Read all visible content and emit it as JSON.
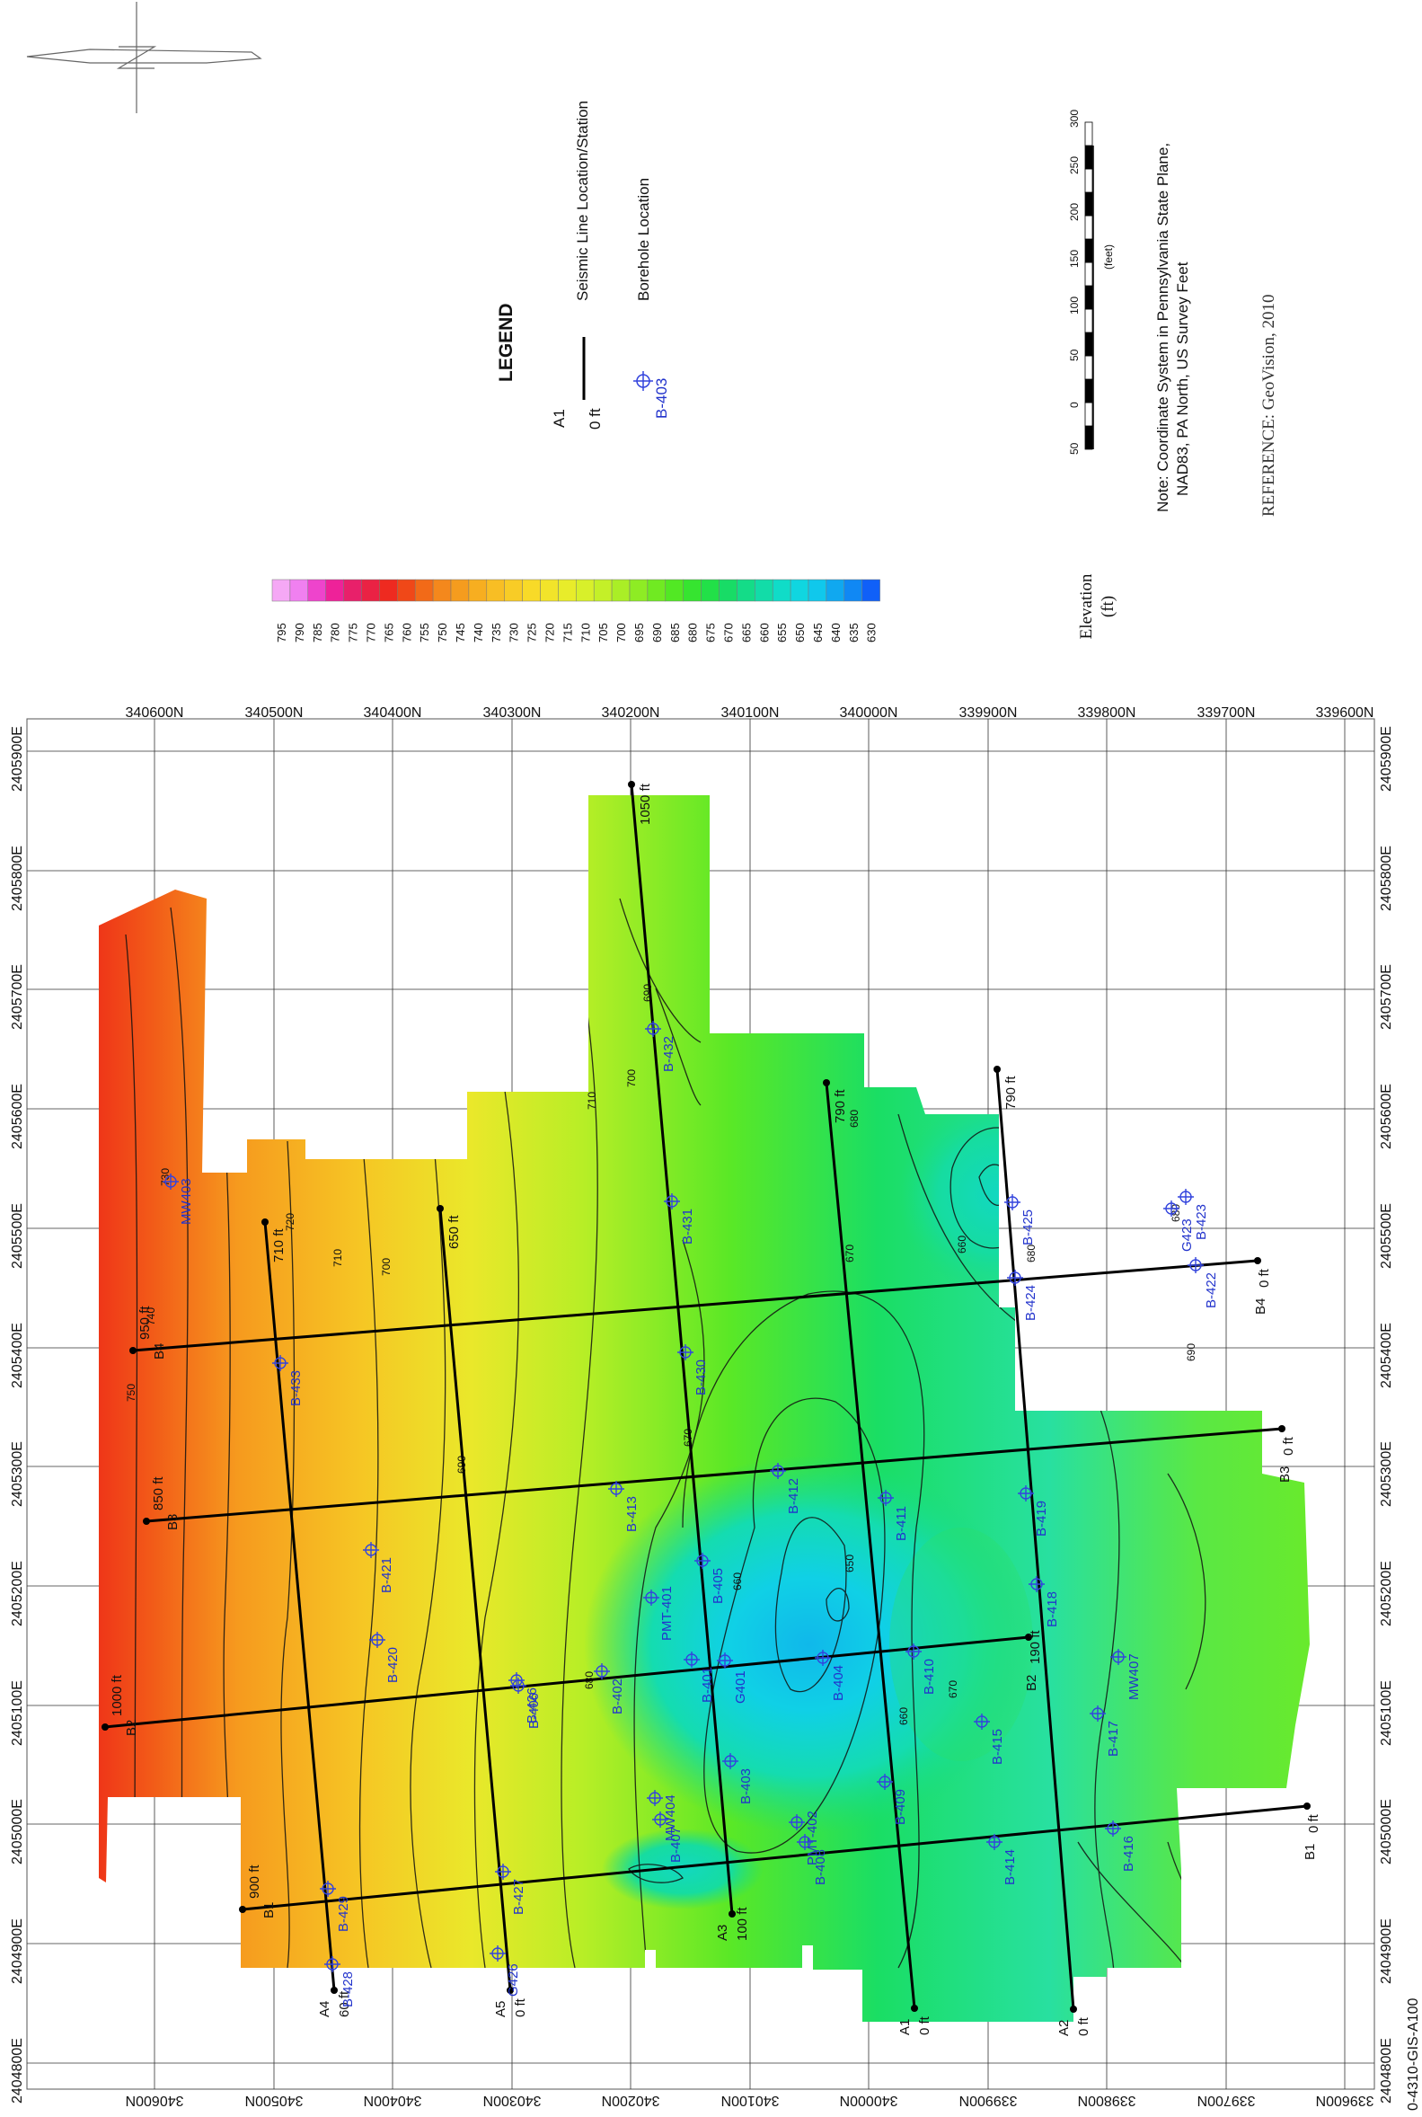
{
  "drawing_id": "0-4310-GIS-A100",
  "legend": {
    "title": "LEGEND",
    "seismic_label": "Seismic Line Location/Station",
    "seismic_example_line": "A1",
    "seismic_example_station": "0 ft",
    "borehole_label": "Borehole Location",
    "borehole_example": "B-403"
  },
  "scale_bar": {
    "labels": [
      "50",
      "0",
      "50",
      "100",
      "150",
      "200",
      "250",
      "300"
    ],
    "unit": "(feet)"
  },
  "note": {
    "line1": "Note:  Coordinate System in Pennsylvania State Plane,",
    "line2": "NAD83, PA North, US Survey Feet"
  },
  "reference": "REFERENCE: GeoVision, 2010",
  "colorbar": {
    "title": "Elevation",
    "unit": "(ft)",
    "levels": [
      795,
      790,
      785,
      780,
      775,
      770,
      765,
      760,
      755,
      750,
      745,
      740,
      735,
      730,
      725,
      720,
      715,
      710,
      705,
      700,
      695,
      690,
      685,
      680,
      675,
      670,
      665,
      660,
      655,
      650,
      645,
      640,
      635,
      630
    ],
    "colors": [
      "#f5a8f5",
      "#f080f0",
      "#ee44cc",
      "#ee2299",
      "#e8206a",
      "#ea2244",
      "#ee2a20",
      "#f04818",
      "#f26a18",
      "#f4881c",
      "#f59c1e",
      "#f7ae20",
      "#f8be24",
      "#f8cc26",
      "#f8da28",
      "#f2e42a",
      "#e8ec2a",
      "#d8f02a",
      "#c4f028",
      "#aaee26",
      "#8eec24",
      "#70ea22",
      "#52e824",
      "#36e430",
      "#22e048",
      "#18dc66",
      "#14dc88",
      "#12dca8",
      "#10dcc8",
      "#10d6e0",
      "#10c8ec",
      "#10a8f0",
      "#1088f4",
      "#1060f8"
    ]
  },
  "axes": {
    "northings": [
      "340600N",
      "340500N",
      "340400N",
      "340300N",
      "340200N",
      "340100N",
      "340000N",
      "339900N",
      "339800N",
      "339700N",
      "339600N"
    ],
    "eastings": [
      "2405900E",
      "2405800E",
      "2405700E",
      "2405600E",
      "2405500E",
      "2405400E",
      "2405300E",
      "2405200E",
      "2405100E",
      "2405000E",
      "2404900E",
      "2404800E"
    ]
  },
  "seismic_lines": [
    {
      "name": "A1",
      "start_label": "0 ft",
      "end_label": "790 ft"
    },
    {
      "name": "A2",
      "start_label": "0 ft",
      "end_label": "790 ft"
    },
    {
      "name": "A3",
      "start_label": "100 ft",
      "end_label": "1050 ft"
    },
    {
      "name": "A4",
      "start_label": "60 ft",
      "end_label": "710 ft"
    },
    {
      "name": "A5",
      "start_label": "0 ft",
      "end_label": "650 ft"
    },
    {
      "name": "B1",
      "start_label": "0 ft",
      "end_label": "900 ft"
    },
    {
      "name": "B2",
      "start_label": "190 ft",
      "end_label": "1000 ft"
    },
    {
      "name": "B3",
      "start_label": "0 ft",
      "end_label": "850 ft"
    },
    {
      "name": "B4",
      "start_label": "0 ft",
      "end_label": "950 ft"
    }
  ],
  "boreholes": [
    "MW403",
    "B-433",
    "B-421",
    "B-420",
    "B-426",
    "B-427",
    "B-428",
    "B-429",
    "G426",
    "B-432",
    "B-431",
    "B-430",
    "B-413",
    "B-412",
    "PMT-401",
    "B-405",
    "B-401",
    "G401",
    "B-404",
    "B-402",
    "B-406",
    "B-403",
    "MW404",
    "B-407",
    "PMT-402",
    "B-408",
    "B-409",
    "B-410",
    "B-411",
    "B-418",
    "B-419",
    "B-415",
    "B-414",
    "B-416",
    "B-417",
    "MW407",
    "B-422",
    "G423",
    "B-423",
    "B-424",
    "B-425"
  ],
  "contour_labels": [
    "730",
    "740",
    "750",
    "720",
    "710",
    "700",
    "690",
    "680",
    "670",
    "660",
    "650",
    "710",
    "700",
    "690",
    "680",
    "670",
    "660",
    "680",
    "690",
    "680",
    "670",
    "660"
  ]
}
